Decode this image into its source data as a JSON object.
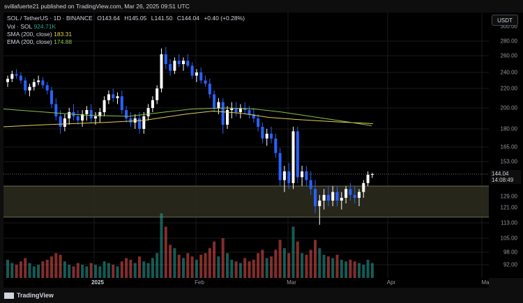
{
  "header": {
    "title": "svillafuerte21 published on TradingView.com, Mar 26, 2025 09:51 UTC"
  },
  "symbol_row": {
    "symbol": "SOL / TetherUS · 1D · BINANCE",
    "open": "O143.64",
    "high": "H145.05",
    "low": "L141.50",
    "close": "C144.04",
    "change": "+0.40 (+0.28%)"
  },
  "indicators": [
    {
      "label": "Vol · SOL",
      "value": "924.71K",
      "color": "#26a69a"
    },
    {
      "label": "SMA (200, close)",
      "value": "183.31",
      "color": "#e6d155"
    },
    {
      "label": "EMA (200, close)",
      "value": "174.88",
      "color": "#8bc34a"
    }
  ],
  "currency_button": "USDT",
  "price_label": {
    "price": "144.04",
    "countdown": "14:08:49"
  },
  "y_ticks": [
    "300.00",
    "280.00",
    "260.00",
    "240.00",
    "220.00",
    "200.00",
    "180.00",
    "165.00",
    "153.00",
    "144.04",
    "129.00",
    "121.00",
    "113.00",
    "105.00",
    "98.00",
    "92.00"
  ],
  "x_ticks": [
    "2025",
    "Feb",
    "Mar",
    "Apr",
    "Ma"
  ],
  "footer": {
    "brand": "TradingView"
  },
  "colors": {
    "up": "#ffffff",
    "down": "#2962ff",
    "vol_up": "#26a69a",
    "vol_down": "#ef5350",
    "sma": "#e6d155",
    "ema": "#8bc34a",
    "support_zone": "#2a2a1e"
  },
  "chart_data": {
    "type": "candlestick",
    "title": "SOL / TetherUS · 1D · BINANCE",
    "ylim": [
      88,
      305
    ],
    "candles": [
      [
        228,
        236,
        222,
        232
      ],
      [
        232,
        242,
        228,
        238
      ],
      [
        238,
        244,
        232,
        236
      ],
      [
        236,
        240,
        226,
        230
      ],
      [
        230,
        234,
        214,
        218
      ],
      [
        218,
        226,
        212,
        222
      ],
      [
        222,
        232,
        218,
        228
      ],
      [
        228,
        236,
        224,
        230
      ],
      [
        230,
        234,
        220,
        224
      ],
      [
        224,
        228,
        214,
        218
      ],
      [
        218,
        222,
        200,
        204
      ],
      [
        204,
        210,
        188,
        192
      ],
      [
        192,
        198,
        176,
        182
      ],
      [
        182,
        194,
        178,
        190
      ],
      [
        190,
        200,
        184,
        196
      ],
      [
        196,
        204,
        188,
        192
      ],
      [
        192,
        198,
        184,
        188
      ],
      [
        188,
        198,
        182,
        194
      ],
      [
        194,
        202,
        188,
        198
      ],
      [
        198,
        204,
        186,
        190
      ],
      [
        190,
        196,
        184,
        192
      ],
      [
        192,
        200,
        186,
        196
      ],
      [
        196,
        212,
        192,
        208
      ],
      [
        208,
        218,
        204,
        214
      ],
      [
        214,
        220,
        206,
        210
      ],
      [
        210,
        216,
        204,
        212
      ],
      [
        212,
        218,
        194,
        198
      ],
      [
        198,
        202,
        186,
        190
      ],
      [
        190,
        196,
        182,
        186
      ],
      [
        186,
        194,
        180,
        190
      ],
      [
        190,
        196,
        176,
        180
      ],
      [
        180,
        196,
        176,
        192
      ],
      [
        192,
        204,
        188,
        200
      ],
      [
        200,
        212,
        196,
        208
      ],
      [
        208,
        224,
        204,
        220
      ],
      [
        220,
        270,
        216,
        262
      ],
      [
        262,
        272,
        244,
        250
      ],
      [
        250,
        256,
        236,
        242
      ],
      [
        242,
        258,
        238,
        254
      ],
      [
        254,
        262,
        246,
        250
      ],
      [
        250,
        258,
        242,
        254
      ],
      [
        254,
        262,
        246,
        248
      ],
      [
        248,
        252,
        232,
        236
      ],
      [
        236,
        244,
        228,
        240
      ],
      [
        240,
        246,
        226,
        230
      ],
      [
        230,
        236,
        222,
        226
      ],
      [
        226,
        232,
        210,
        214
      ],
      [
        214,
        218,
        196,
        200
      ],
      [
        200,
        210,
        194,
        206
      ],
      [
        206,
        210,
        176,
        184
      ],
      [
        184,
        202,
        180,
        198
      ],
      [
        198,
        206,
        190,
        200
      ],
      [
        200,
        206,
        192,
        196
      ],
      [
        196,
        204,
        190,
        200
      ],
      [
        200,
        206,
        194,
        198
      ],
      [
        198,
        202,
        190,
        194
      ],
      [
        194,
        200,
        186,
        190
      ],
      [
        190,
        194,
        178,
        182
      ],
      [
        182,
        186,
        168,
        172
      ],
      [
        172,
        180,
        166,
        176
      ],
      [
        176,
        182,
        168,
        172
      ],
      [
        172,
        176,
        156,
        160
      ],
      [
        160,
        164,
        136,
        140
      ],
      [
        140,
        150,
        132,
        146
      ],
      [
        146,
        152,
        134,
        138
      ],
      [
        138,
        182,
        134,
        178
      ],
      [
        178,
        182,
        138,
        142
      ],
      [
        142,
        150,
        136,
        146
      ],
      [
        146,
        150,
        136,
        140
      ],
      [
        140,
        146,
        130,
        134
      ],
      [
        134,
        140,
        118,
        122
      ],
      [
        122,
        130,
        112,
        126
      ],
      [
        126,
        134,
        120,
        130
      ],
      [
        130,
        136,
        122,
        126
      ],
      [
        126,
        136,
        122,
        132
      ],
      [
        132,
        136,
        122,
        126
      ],
      [
        126,
        132,
        120,
        128
      ],
      [
        128,
        136,
        124,
        134
      ],
      [
        134,
        138,
        126,
        130
      ],
      [
        130,
        136,
        124,
        128
      ],
      [
        128,
        134,
        122,
        132
      ],
      [
        132,
        140,
        128,
        138
      ],
      [
        138,
        146,
        136,
        143.64
      ],
      [
        143.64,
        145.05,
        141.5,
        144.04
      ]
    ],
    "volume": [
      22,
      18,
      16,
      20,
      24,
      18,
      14,
      16,
      20,
      22,
      26,
      30,
      28,
      20,
      16,
      14,
      18,
      16,
      14,
      18,
      16,
      14,
      20,
      18,
      16,
      14,
      20,
      24,
      22,
      18,
      26,
      20,
      18,
      24,
      30,
      78,
      62,
      40,
      36,
      28,
      24,
      30,
      26,
      22,
      28,
      30,
      36,
      44,
      26,
      48,
      30,
      22,
      20,
      18,
      24,
      20,
      22,
      30,
      34,
      24,
      26,
      34,
      46,
      36,
      30,
      62,
      44,
      30,
      28,
      34,
      46,
      36,
      28,
      26,
      24,
      28,
      22,
      20,
      22,
      20,
      18,
      16,
      22,
      18
    ]
  }
}
